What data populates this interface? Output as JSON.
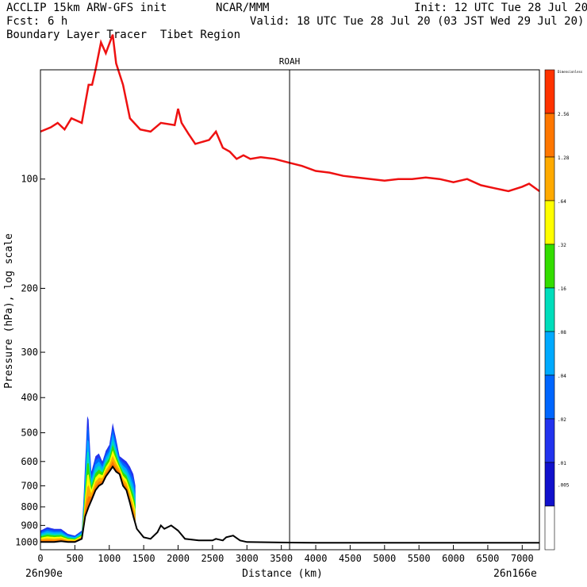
{
  "header": {
    "model_line": "ACCLIP 15km ARW-GFS init",
    "org": "NCAR/MMM",
    "init": "Init: 12 UTC Tue 28 Jul 20",
    "fcst_label": "Fcst:",
    "fcst_value": "6 h",
    "valid": "Valid: 18 UTC Tue 28 Jul 20 (03 JST Wed 29 Jul 20)",
    "field": "Boundary Layer Tracer  Tibet Region"
  },
  "chart_data": {
    "type": "area",
    "title": "ROAH",
    "xlabel": "Distance (km)",
    "ylabel": "Pressure (hPa), log scale",
    "xlim": [
      0,
      7250
    ],
    "ylim": [
      1050,
      50
    ],
    "x_ticks": [
      "0",
      "500",
      "1000",
      "1500",
      "2000",
      "2500",
      "3000",
      "3500",
      "4000",
      "4500",
      "5000",
      "5500",
      "6000",
      "6500",
      "7000"
    ],
    "y_ticks": [
      "100",
      "200",
      "300",
      "400",
      "500",
      "600",
      "700",
      "800",
      "900",
      "1000"
    ],
    "x_start_label": "26n90e",
    "x_end_label": "26n166e",
    "marker_x": 3620,
    "tropopause": {
      "name": "tropopause",
      "color": "#ee1111",
      "x": [
        0,
        150,
        250,
        350,
        450,
        600,
        650,
        700,
        750,
        800,
        880,
        950,
        1050,
        1100,
        1200,
        1300,
        1450,
        1600,
        1750,
        1950,
        2000,
        2050,
        2150,
        2250,
        2450,
        2550,
        2650,
        2750,
        2850,
        2950,
        3050,
        3200,
        3400,
        3600,
        3800,
        4000,
        4200,
        4400,
        4600,
        4800,
        5000,
        5200,
        5400,
        5600,
        5800,
        6000,
        6200,
        6400,
        6600,
        6800,
        7000,
        7100,
        7250
      ],
      "p": [
        74,
        72,
        70,
        73,
        68,
        70,
        62,
        55,
        55,
        50,
        42,
        45,
        40,
        48,
        55,
        68,
        73,
        74,
        70,
        71,
        64,
        70,
        75,
        80,
        78,
        74,
        82,
        84,
        88,
        86,
        88,
        87,
        88,
        90,
        92,
        95,
        96,
        98,
        99,
        100,
        101,
        100,
        100,
        99,
        100,
        102,
        100,
        104,
        106,
        108,
        105,
        103,
        108
      ]
    },
    "surface": {
      "name": "surface",
      "color": "#000000",
      "x": [
        0,
        100,
        200,
        300,
        400,
        500,
        600,
        650,
        700,
        750,
        800,
        850,
        900,
        950,
        1000,
        1050,
        1100,
        1150,
        1200,
        1250,
        1300,
        1350,
        1400,
        1500,
        1600,
        1700,
        1750,
        1800,
        1900,
        2000,
        2100,
        2300,
        2500,
        2550,
        2650,
        2700,
        2800,
        2900,
        3000,
        3500,
        4000,
        5000,
        6000,
        7000,
        7250
      ],
      "p": [
        1000,
        1000,
        1000,
        995,
        1000,
        1000,
        980,
        850,
        800,
        760,
        720,
        700,
        690,
        660,
        640,
        620,
        640,
        650,
        700,
        720,
        780,
        850,
        920,
        970,
        980,
        940,
        900,
        920,
        900,
        930,
        980,
        990,
        990,
        980,
        990,
        970,
        960,
        990,
        1000,
        1003,
        1005,
        1005,
        1005,
        1005,
        1005
      ]
    },
    "tracer_top": {
      "x": [
        0,
        100,
        200,
        300,
        400,
        500,
        600,
        650,
        680,
        700,
        720,
        740,
        760,
        800,
        850,
        900,
        950,
        1000,
        1050,
        1100,
        1150,
        1200,
        1250,
        1300,
        1350,
        1380
      ],
      "p": [
        930,
        910,
        920,
        920,
        950,
        960,
        930,
        600,
        450,
        460,
        550,
        640,
        620,
        580,
        570,
        600,
        560,
        540,
        470,
        520,
        580,
        590,
        600,
        620,
        650,
        700
      ]
    },
    "colorbar": {
      "levels": [
        "Dimensionless",
        "2.56",
        "1.28",
        ".64",
        ".32",
        ".16",
        ".08",
        ".04",
        ".02",
        ".01",
        ".005"
      ],
      "colors": [
        "#ff3300",
        "#ff7700",
        "#ffaa00",
        "#ffff00",
        "#33dd00",
        "#00ddbb",
        "#00aaff",
        "#0066ff",
        "#2233ee",
        "#1111cc",
        "#ffffff"
      ]
    }
  }
}
